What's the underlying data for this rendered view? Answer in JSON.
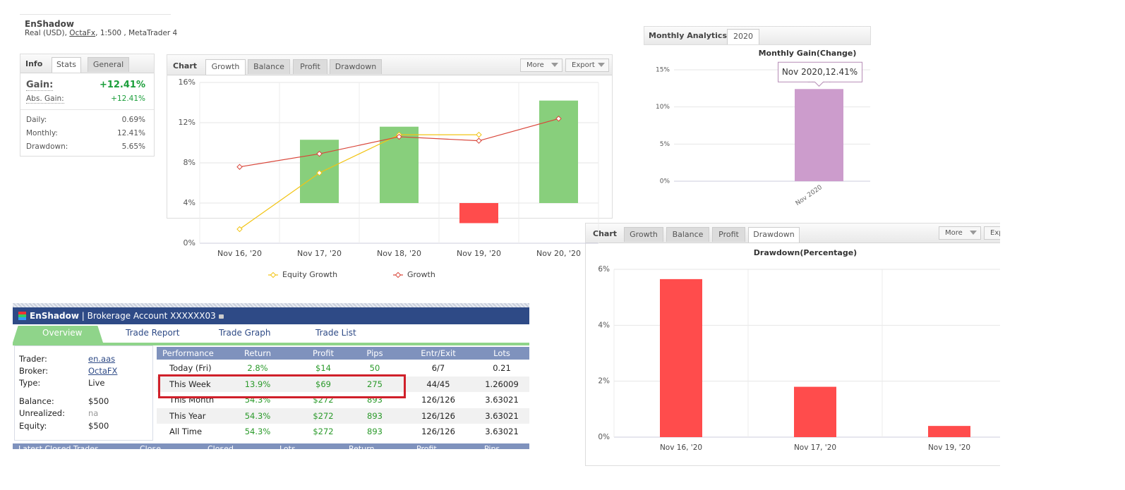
{
  "account": {
    "name": "EnShadow",
    "details_prefix": "Real (USD),",
    "broker": "OctaFx",
    "details_suffix": ", 1:500 , MetaTrader 4"
  },
  "info_panel": {
    "tabs": [
      "Info",
      "Stats",
      "General"
    ],
    "gain_label": "Gain:",
    "gain": "+12.41%",
    "abs_gain_label": "Abs. Gain:",
    "abs_gain": "+12.41%",
    "rows": [
      [
        "Daily:",
        "0.69%"
      ],
      [
        "Monthly:",
        "12.41%"
      ],
      [
        "Drawdown:",
        "5.65%"
      ]
    ]
  },
  "growth_panel": {
    "tabs": [
      "Chart",
      "Growth",
      "Balance",
      "Profit",
      "Drawdown"
    ],
    "buttons": [
      "More",
      "Export"
    ]
  },
  "analytics_panel": {
    "tabs": [
      "Monthly Analytics",
      "2020"
    ]
  },
  "drawdown_panel": {
    "tabs": [
      "Chart",
      "Growth",
      "Balance",
      "Profit",
      "Drawdown"
    ],
    "buttons": [
      "More",
      "Exp"
    ]
  },
  "brokerage": {
    "name": "EnShadow",
    "title": "| Brokerage Account XXXXXX03",
    "nav": [
      "Overview",
      "Trade Report",
      "Trade Graph",
      "Trade List"
    ],
    "account_rows": [
      [
        "Trader:",
        "en.aas"
      ],
      [
        "Broker:",
        "OctaFX"
      ],
      [
        "Type:",
        "Live"
      ],
      [
        "Balance:",
        "$500"
      ],
      [
        "Unrealized:",
        "na"
      ],
      [
        "Equity:",
        "$500"
      ]
    ],
    "table": {
      "columns": [
        "Performance",
        "Return",
        "Profit",
        "Pips",
        "Entr/Exit",
        "Lots"
      ],
      "rows": [
        [
          "Today (Fri)",
          "2.8%",
          "$14",
          "50",
          "6/7",
          "0.21"
        ],
        [
          "This Week",
          "13.9%",
          "$69",
          "275",
          "44/45",
          "1.26009"
        ],
        [
          "This Month",
          "54.3%",
          "$272",
          "893",
          "126/126",
          "3.63021"
        ],
        [
          "This Year",
          "54.3%",
          "$272",
          "893",
          "126/126",
          "3.63021"
        ],
        [
          "All Time",
          "54.3%",
          "$272",
          "893",
          "126/126",
          "3.63021"
        ]
      ]
    },
    "footer_columns": [
      "Latest Closed Trades",
      "Close",
      "Closed",
      "Lots",
      "Return",
      "Profit",
      "Pips"
    ]
  },
  "chart_data": [
    {
      "type": "combo",
      "categories": [
        "Nov 16, '20",
        "Nov 17, '20",
        "Nov 18, '20",
        "Nov 19, '20",
        "Nov 20, '20"
      ],
      "bars": {
        "values": [
          null,
          10.3,
          11.6,
          2.0,
          14.2
        ],
        "bar_base": 4,
        "color": "#88cf7c",
        "negative_color": "#ff4c4c"
      },
      "series": [
        {
          "name": "Equity Growth",
          "color": "#f2c413",
          "values": [
            1.4,
            7.0,
            10.8,
            10.8,
            null
          ]
        },
        {
          "name": "Growth",
          "color": "#d9463a",
          "values": [
            7.6,
            8.9,
            10.6,
            10.2,
            12.4
          ]
        }
      ],
      "ylim": [
        0,
        16
      ],
      "yticks": [
        {
          "value": 0,
          "label": "0%"
        },
        {
          "value": 4,
          "label": "4%"
        },
        {
          "value": 8,
          "label": "8%"
        },
        {
          "value": 12,
          "label": "12%"
        },
        {
          "value": 16,
          "label": "16%"
        }
      ],
      "grid": true,
      "vgrid": true,
      "legend": "bottom"
    },
    {
      "type": "bar",
      "title": "Monthly Gain(Change)",
      "categories": [
        "Nov 2020"
      ],
      "values": [
        12.41
      ],
      "value_labels": [
        "12.41%"
      ],
      "tooltip": "Nov 2020,12.41%",
      "color": "#cc9ccc",
      "ylim": [
        0,
        15
      ],
      "yticks": [
        {
          "value": 0,
          "label": "0%"
        },
        {
          "value": 5,
          "label": "5%"
        },
        {
          "value": 10,
          "label": "10%"
        },
        {
          "value": 15,
          "label": "15%"
        }
      ],
      "grid": true,
      "vgrid": false,
      "rotate_labels": true
    },
    {
      "type": "bar",
      "title": "Drawdown(Percentage)",
      "categories": [
        "Nov 16, '20",
        "Nov 17, '20",
        "Nov 19, '20"
      ],
      "values": [
        5.65,
        1.8,
        0.4
      ],
      "color": "#ff4c4c",
      "ylim": [
        0,
        6
      ],
      "yticks": [
        {
          "value": 0,
          "label": "0%"
        },
        {
          "value": 2,
          "label": "2%"
        },
        {
          "value": 4,
          "label": "4%"
        },
        {
          "value": 6,
          "label": "6%"
        }
      ],
      "grid": true,
      "vgrid": true
    }
  ]
}
